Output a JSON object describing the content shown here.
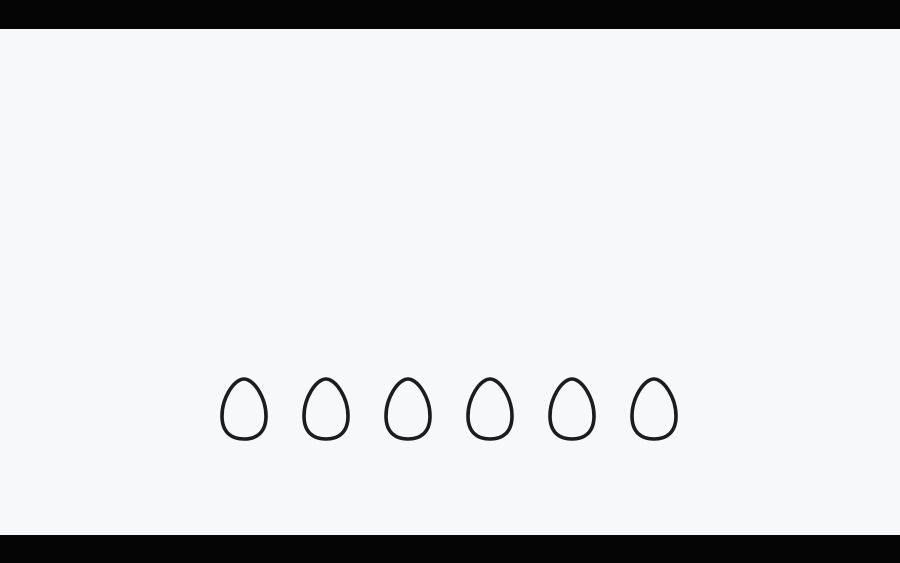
{
  "colors": {
    "letterbox": "#050505",
    "background": "#f7f8fa",
    "egg_outline": "#1c1c1c"
  },
  "eggs": [
    {
      "icon": "egg-outline-icon",
      "state": "empty"
    },
    {
      "icon": "egg-outline-icon",
      "state": "empty"
    },
    {
      "icon": "egg-outline-icon",
      "state": "empty"
    },
    {
      "icon": "egg-outline-icon",
      "state": "empty"
    },
    {
      "icon": "egg-outline-icon",
      "state": "empty"
    },
    {
      "icon": "egg-outline-icon",
      "state": "empty"
    }
  ]
}
